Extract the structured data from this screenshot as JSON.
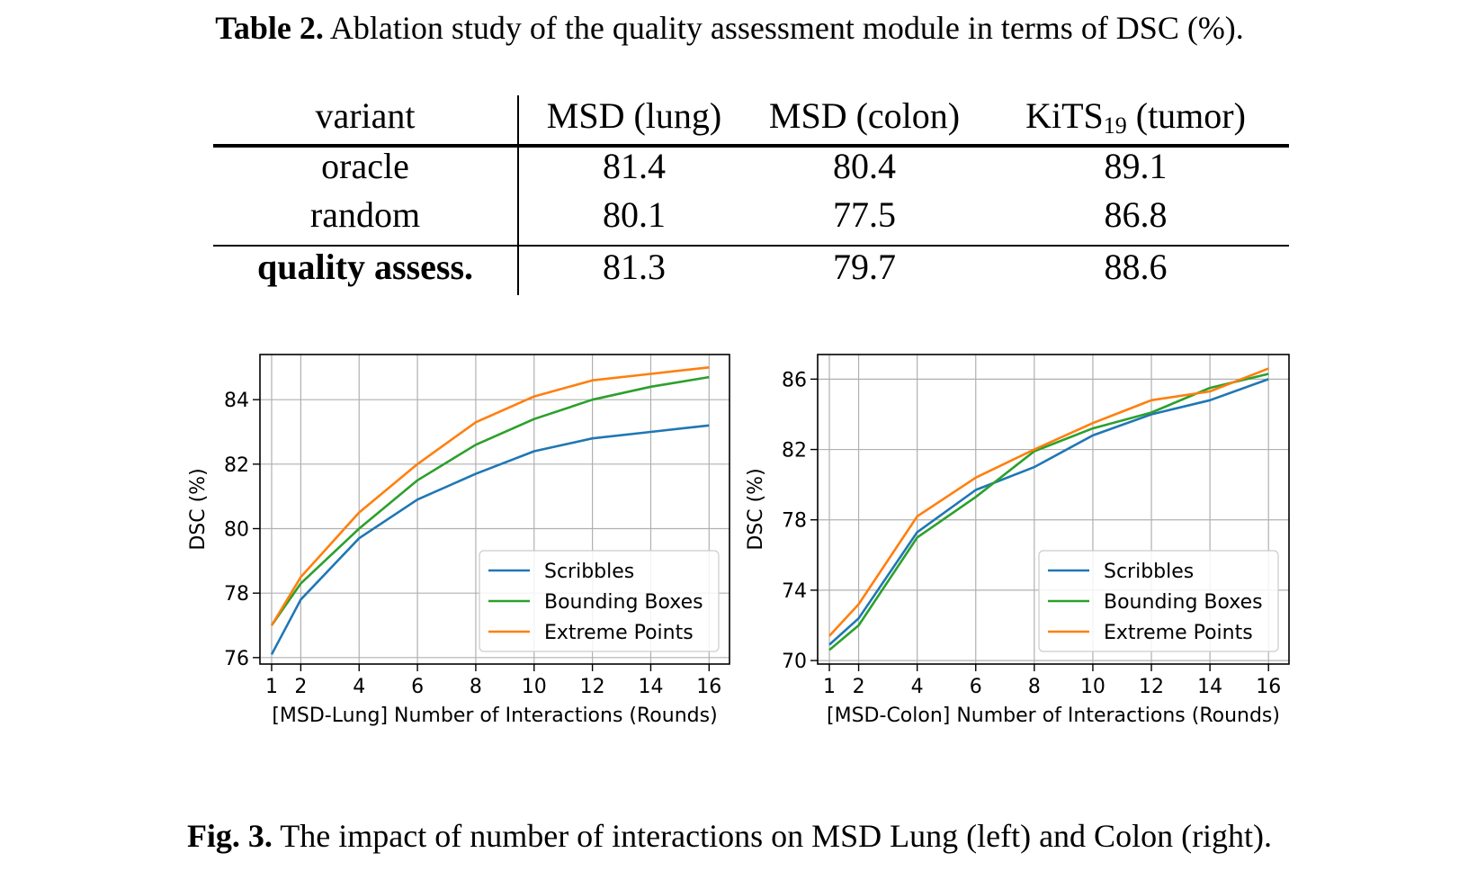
{
  "table_caption": {
    "label": "Table 2.",
    "text": "Ablation study of the quality assessment module in terms of DSC (%)."
  },
  "table": {
    "headers": [
      "variant",
      "MSD (lung)",
      "MSD (colon)",
      "KiTS",
      "19",
      "(tumor)"
    ],
    "rows": [
      [
        "oracle",
        "81.4",
        "80.4",
        "89.1"
      ],
      [
        "random",
        "80.1",
        "77.5",
        "86.8"
      ],
      [
        "quality assess.",
        "81.3",
        "79.7",
        "88.6"
      ]
    ]
  },
  "chart_data": [
    {
      "type": "line",
      "title": "",
      "xlabel": "[MSD-Lung] Number of Interactions (Rounds)",
      "ylabel": "DSC (%)",
      "x": [
        1,
        2,
        4,
        6,
        8,
        10,
        12,
        14,
        16
      ],
      "xticks": [
        1,
        2,
        4,
        6,
        8,
        10,
        12,
        14,
        16
      ],
      "yticks": [
        76,
        78,
        80,
        82,
        84
      ],
      "xlim": [
        0.6,
        16.7
      ],
      "ylim": [
        75.8,
        85.4
      ],
      "grid": true,
      "legend_position": "lower-right",
      "series": [
        {
          "name": "Scribbles",
          "color": "#1f77b4",
          "values": [
            76.1,
            77.8,
            79.7,
            80.9,
            81.7,
            82.4,
            82.8,
            83.0,
            83.2
          ]
        },
        {
          "name": "Bounding Boxes",
          "color": "#2ca02c",
          "values": [
            77.0,
            78.3,
            80.0,
            81.5,
            82.6,
            83.4,
            84.0,
            84.4,
            84.7
          ]
        },
        {
          "name": "Extreme Points",
          "color": "#ff7f0e",
          "values": [
            77.0,
            78.5,
            80.5,
            82.0,
            83.3,
            84.1,
            84.6,
            84.8,
            85.0
          ]
        }
      ]
    },
    {
      "type": "line",
      "title": "",
      "xlabel": "[MSD-Colon] Number of Interactions (Rounds)",
      "ylabel": "DSC (%)",
      "x": [
        1,
        2,
        4,
        6,
        8,
        10,
        12,
        14,
        16
      ],
      "xticks": [
        1,
        2,
        4,
        6,
        8,
        10,
        12,
        14,
        16
      ],
      "yticks": [
        70,
        74,
        78,
        82,
        86
      ],
      "xlim": [
        0.6,
        16.7
      ],
      "ylim": [
        69.8,
        87.4
      ],
      "grid": true,
      "legend_position": "lower-right",
      "series": [
        {
          "name": "Scribbles",
          "color": "#1f77b4",
          "values": [
            70.9,
            72.4,
            77.3,
            79.7,
            81.0,
            82.8,
            84.0,
            84.8,
            86.0
          ]
        },
        {
          "name": "Bounding Boxes",
          "color": "#2ca02c",
          "values": [
            70.6,
            72.0,
            77.0,
            79.3,
            81.9,
            83.2,
            84.1,
            85.5,
            86.3
          ]
        },
        {
          "name": "Extreme Points",
          "color": "#ff7f0e",
          "values": [
            71.4,
            73.2,
            78.2,
            80.4,
            82.0,
            83.5,
            84.8,
            85.3,
            86.6
          ]
        }
      ]
    }
  ],
  "fig_caption": {
    "label": "Fig. 3.",
    "text": "The impact of number of interactions on MSD Lung (left) and Colon (right)."
  }
}
